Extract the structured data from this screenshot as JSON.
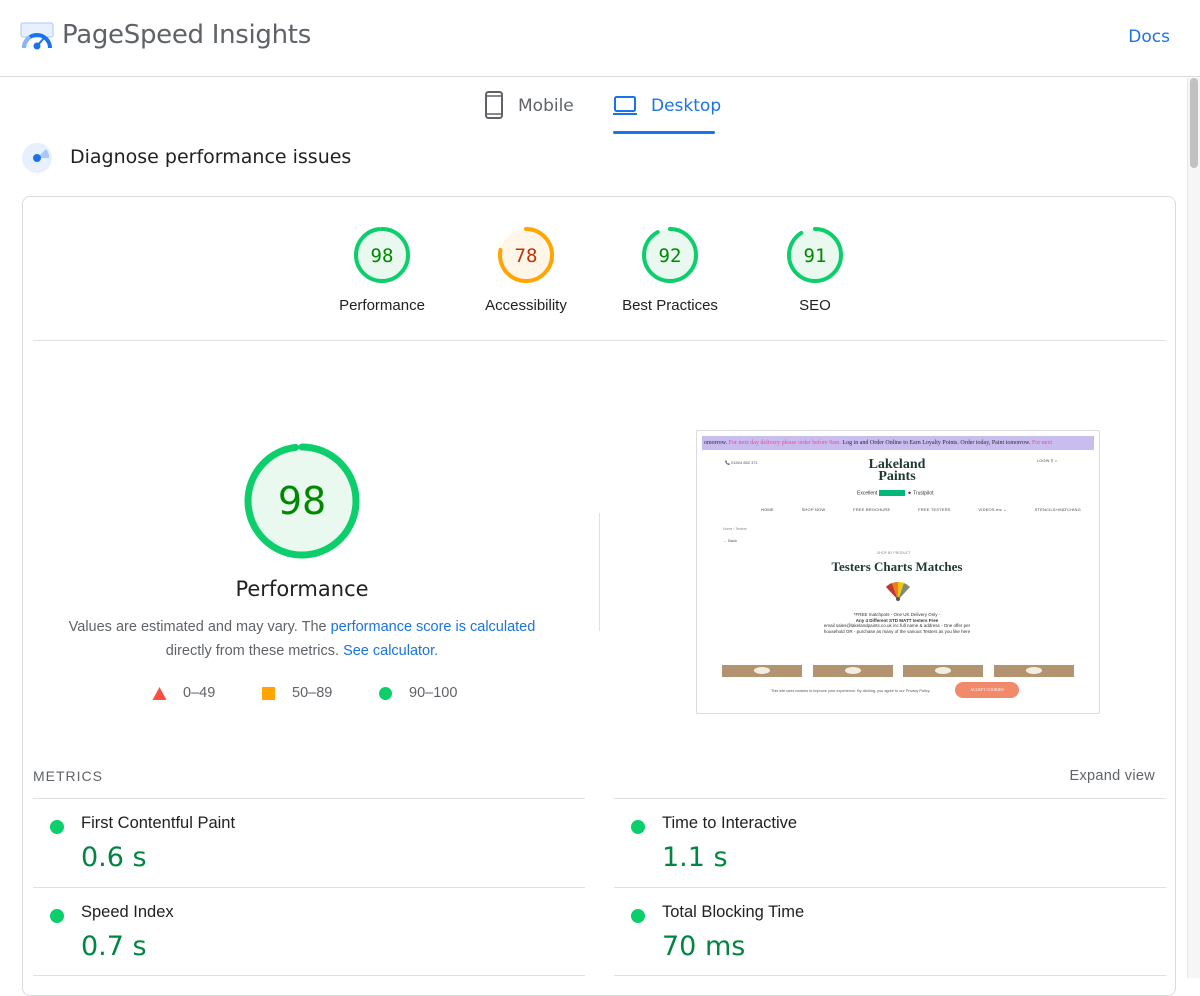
{
  "header": {
    "title": "PageSpeed Insights",
    "docs_label": "Docs"
  },
  "tabs": [
    {
      "label": "Mobile",
      "icon": "phone-icon",
      "active": false
    },
    {
      "label": "Desktop",
      "icon": "laptop-icon",
      "active": true
    }
  ],
  "diagnose": {
    "title": "Diagnose performance issues",
    "icon": "lighthouse-icon"
  },
  "colors": {
    "pass": "#0cce6b",
    "pass_text": "#008800",
    "average": "#ffa400",
    "average_text": "#c33300",
    "fail": "#ff4e42",
    "link": "#1a73e8"
  },
  "scores": [
    {
      "label": "Performance",
      "value": 98,
      "rating": "pass"
    },
    {
      "label": "Accessibility",
      "value": 78,
      "rating": "average"
    },
    {
      "label": "Best Practices",
      "value": 92,
      "rating": "pass"
    },
    {
      "label": "SEO",
      "value": 91,
      "rating": "pass"
    }
  ],
  "performance": {
    "score": 98,
    "label": "Performance",
    "note_prefix": "Values are estimated and may vary. The ",
    "note_link1": "performance score is calculated",
    "note_middle": " directly from these metrics. ",
    "note_link2": "See calculator."
  },
  "legend": [
    {
      "range": "0–49",
      "shape": "triangle",
      "color": "#ff4e42"
    },
    {
      "range": "50–89",
      "shape": "square",
      "color": "#ffa400"
    },
    {
      "range": "90–100",
      "shape": "circle",
      "color": "#0cce6b"
    }
  ],
  "thumbnail": {
    "banner_left": "omorrow.",
    "banner_pink": " For next day delivery please order before 9am. ",
    "banner_mid": "Log in and Order Online to Earn Loyalty Points.",
    "banner_right": "      Order today, Paint tomorrow.",
    "banner_pink2": " For next",
    "phone": "📞 01524 852 371",
    "login": "LOGIN  ⚲  ⌂",
    "brand_line1": "Lakeland",
    "brand_line2": "Paints",
    "trust": "Excellent",
    "trust_site": "★ Trustpilot",
    "nav": [
      "HOME",
      "SHOP NOW",
      "FREE BROCHURE",
      "FREE TESTERS",
      "VIDEOS etc ⌄",
      "STENCILS+MATCHING"
    ],
    "crumb": "Home › Testers",
    "back": "← Back",
    "shop_by": "SHOP BY PRODUCT",
    "heading": "Testers Charts Matches",
    "text_line1": "*FREE matchpots - One UK Delivery Only -",
    "text_line2": "Any 4 Different STD MATT testers Free",
    "text_line3": "email sales@lakelandpaints.co.uk inc full name & address - One offer per",
    "text_line4": "household OR - purchase as many of the various Testers as you like here",
    "cookie": "This site uses cookies to improve your experience. By clicking, you agree to our Privacy Policy.",
    "accept": "ACCEPT COOKIES"
  },
  "metrics": {
    "title": "METRICS",
    "expand_label": "Expand view",
    "items": [
      {
        "name": "First Contentful Paint",
        "value": "0.6 s",
        "rating": "pass"
      },
      {
        "name": "Time to Interactive",
        "value": "1.1 s",
        "rating": "pass"
      },
      {
        "name": "Speed Index",
        "value": "0.7 s",
        "rating": "pass"
      },
      {
        "name": "Total Blocking Time",
        "value": "70 ms",
        "rating": "pass"
      }
    ]
  }
}
